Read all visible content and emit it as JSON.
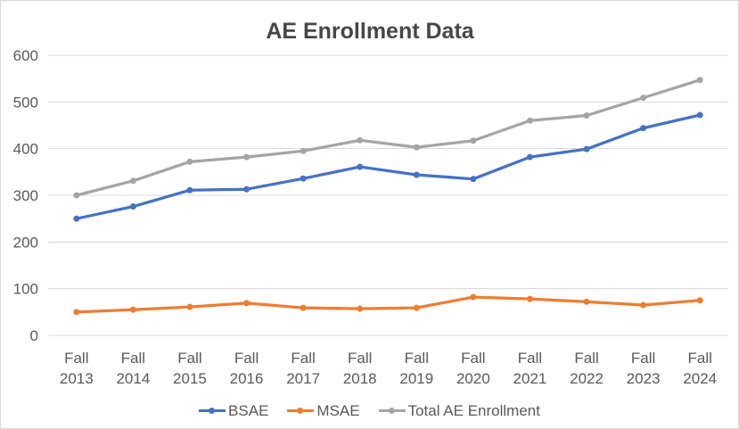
{
  "chart": {
    "title": "AE Enrollment Data"
  },
  "chart_data": {
    "type": "line",
    "title": "AE Enrollment Data",
    "xlabel": "",
    "ylabel": "",
    "categories": [
      "Fall 2013",
      "Fall 2014",
      "Fall 2015",
      "Fall 2016",
      "Fall 2017",
      "Fall 2018",
      "Fall 2019",
      "Fall 2020",
      "Fall 2021",
      "Fall 2022",
      "Fall 2023",
      "Fall 2024"
    ],
    "series": [
      {
        "name": "BSAE",
        "color": "#4472C4",
        "values": [
          250,
          276,
          311,
          313,
          336,
          361,
          344,
          335,
          382,
          399,
          444,
          472
        ]
      },
      {
        "name": "MSAE",
        "color": "#ED7D31",
        "values": [
          50,
          55,
          61,
          69,
          59,
          57,
          59,
          82,
          78,
          72,
          65,
          75
        ]
      },
      {
        "name": "Total AE Enrollment",
        "color": "#A5A5A5",
        "values": [
          300,
          331,
          372,
          382,
          395,
          418,
          403,
          417,
          460,
          471,
          509,
          547
        ]
      }
    ],
    "ylim": [
      0,
      600
    ],
    "ytick_step": 100,
    "yticks": [
      0,
      100,
      200,
      300,
      400,
      500,
      600
    ],
    "grid": true,
    "legend_position": "bottom",
    "marker": "circle",
    "colors": {
      "text": "#595959",
      "title_text": "#474747",
      "gridline": "#D9D9D9",
      "background": "#FFFFFF",
      "border": "#D9D9D9"
    }
  }
}
